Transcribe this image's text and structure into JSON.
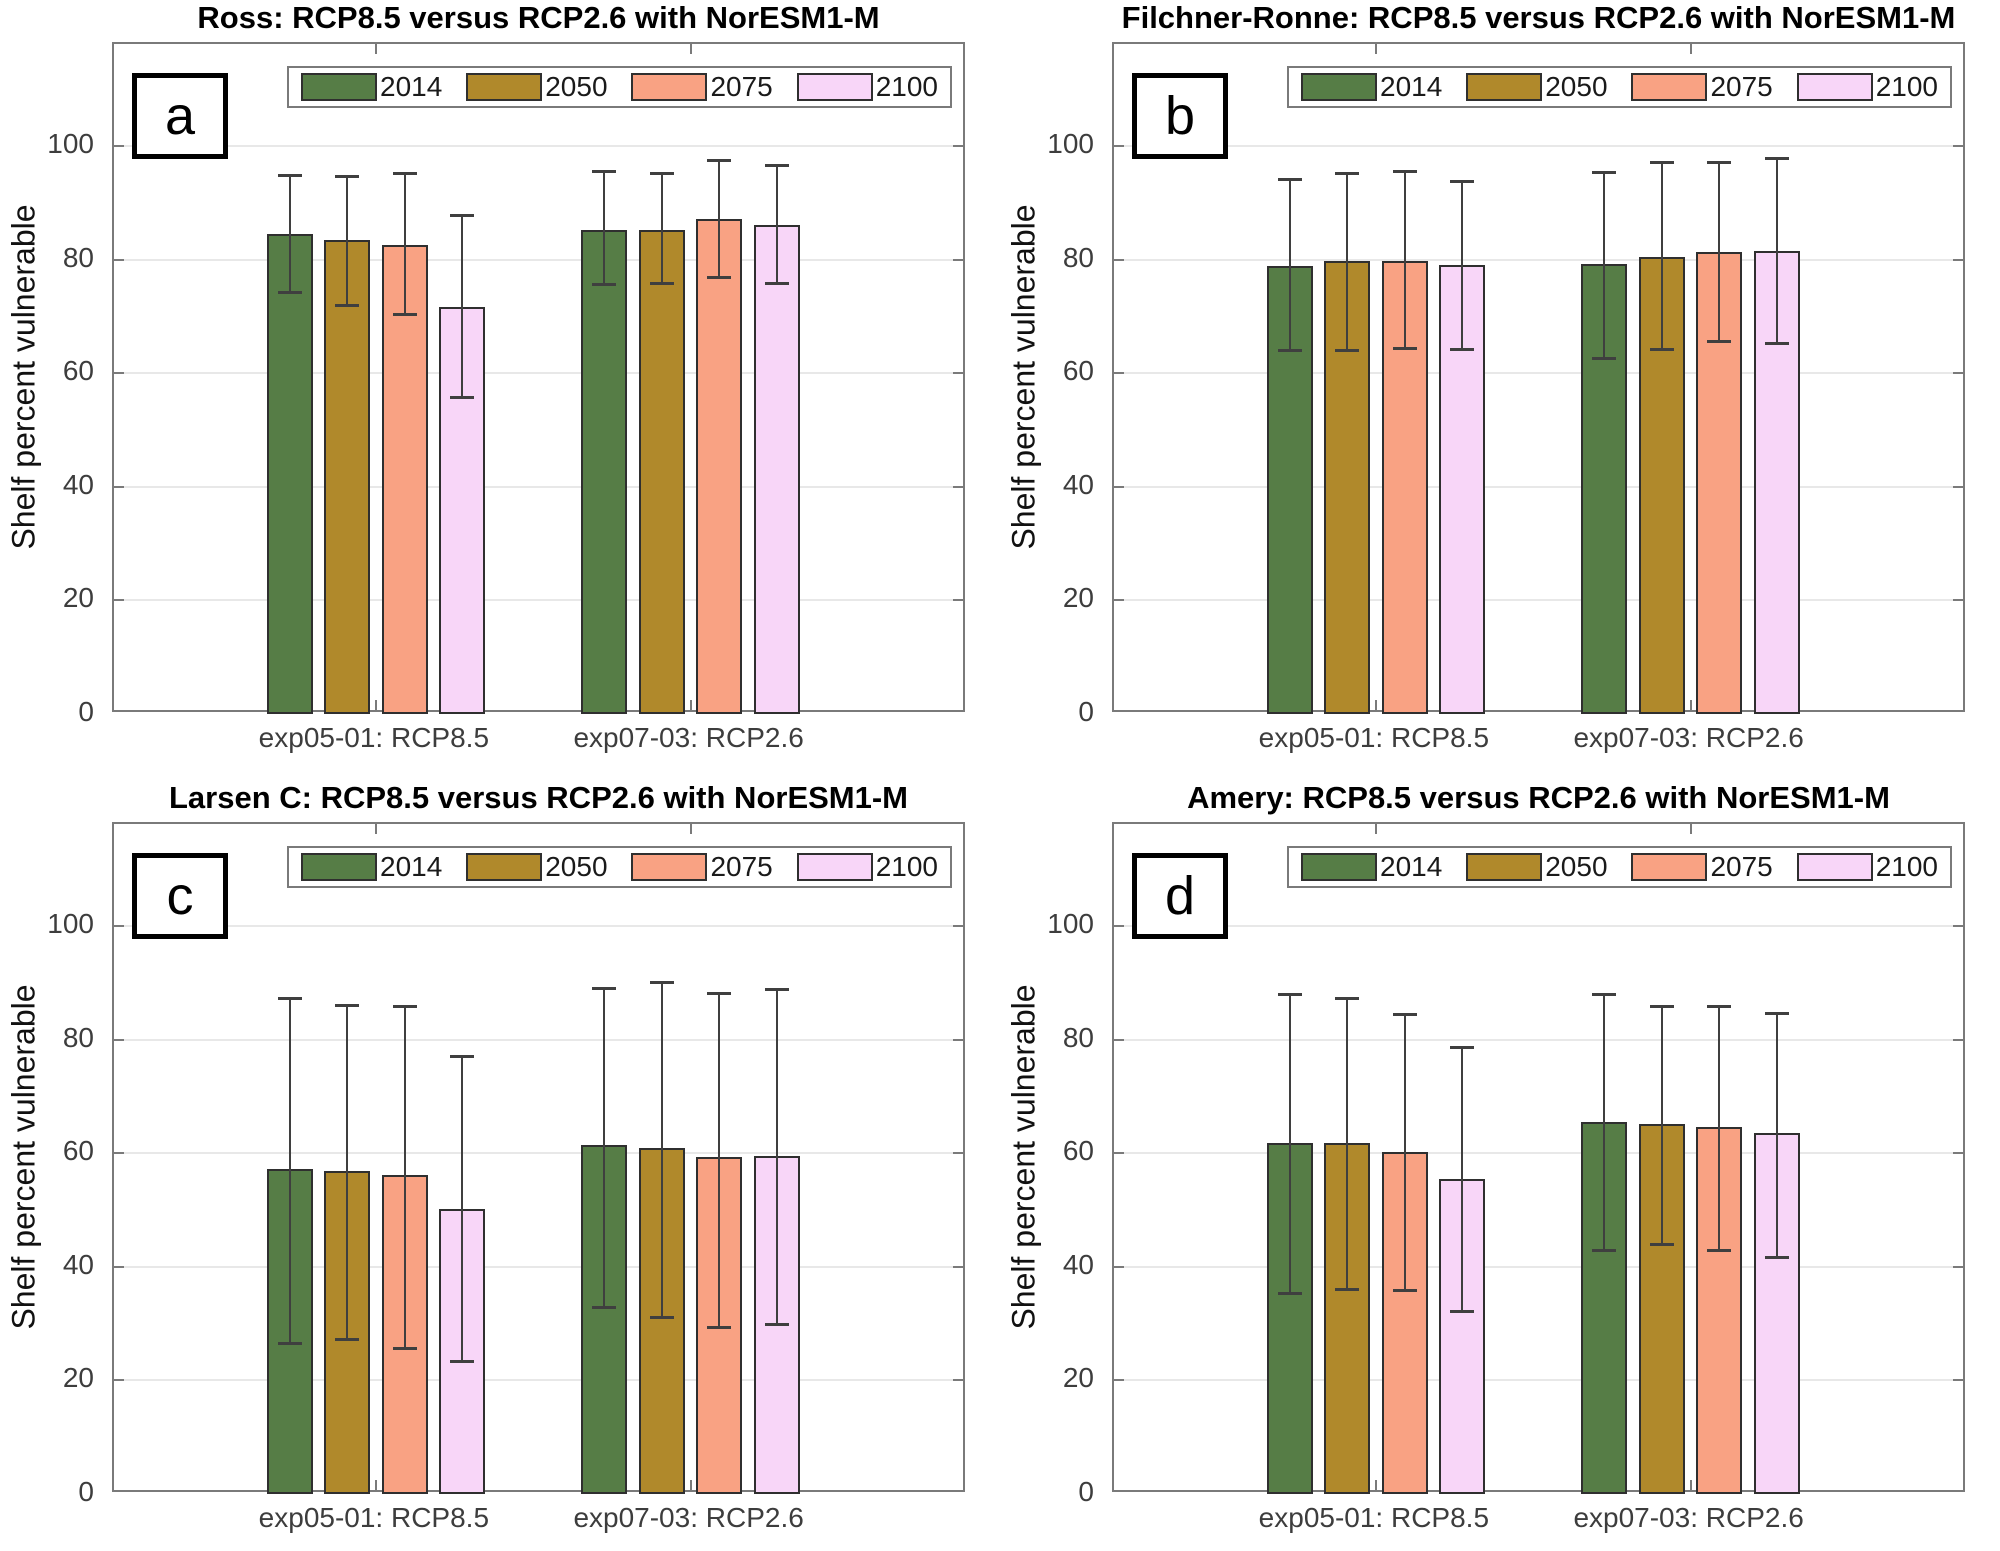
{
  "chart_data": [
    {
      "panel_label": "a",
      "type": "bar",
      "title": "Ross: RCP8.5 versus RCP2.6 with NorESM1-M",
      "ylabel": "Shelf percent vulnerable",
      "categories": [
        "exp05-01: RCP8.5",
        "exp07-03: RCP2.6"
      ],
      "series": [
        {
          "name": "2014",
          "color": "#567d46",
          "values": [
            84.5,
            85.3
          ],
          "err_low": [
            74.3,
            75.7
          ],
          "err_high": [
            94.9,
            95.6
          ]
        },
        {
          "name": "2050",
          "color": "#b0892b",
          "values": [
            83.4,
            85.2
          ],
          "err_low": [
            72.0,
            75.9
          ],
          "err_high": [
            94.8,
            95.2
          ]
        },
        {
          "name": "2075",
          "color": "#f9a283",
          "values": [
            82.6,
            87.1
          ],
          "err_low": [
            70.5,
            76.9
          ],
          "err_high": [
            95.2,
            97.5
          ]
        },
        {
          "name": "2100",
          "color": "#f8d6f8",
          "values": [
            71.6,
            86.2
          ],
          "err_low": [
            55.9,
            75.9
          ],
          "err_high": [
            87.8,
            96.7
          ]
        }
      ],
      "ylim": [
        0,
        118
      ],
      "y_ticks": [
        0,
        20,
        40,
        60,
        80,
        100
      ],
      "grid": true,
      "legend_position": "top"
    },
    {
      "panel_label": "b",
      "type": "bar",
      "title": "Filchner-Ronne: RCP8.5 versus RCP2.6 with NorESM1-M",
      "ylabel": "Shelf percent vulnerable",
      "categories": [
        "exp05-01: RCP8.5",
        "exp07-03: RCP2.6"
      ],
      "series": [
        {
          "name": "2014",
          "color": "#567d46",
          "values": [
            78.9,
            79.2
          ],
          "err_low": [
            64.1,
            62.7
          ],
          "err_high": [
            94.3,
            95.4
          ]
        },
        {
          "name": "2050",
          "color": "#b0892b",
          "values": [
            79.8,
            80.5
          ],
          "err_low": [
            64.1,
            64.3
          ],
          "err_high": [
            95.3,
            97.2
          ]
        },
        {
          "name": "2075",
          "color": "#f9a283",
          "values": [
            79.7,
            81.4
          ],
          "err_low": [
            64.4,
            65.7
          ],
          "err_high": [
            95.6,
            97.3
          ]
        },
        {
          "name": "2100",
          "color": "#f8d6f8",
          "values": [
            79.0,
            81.5
          ],
          "err_low": [
            64.3,
            65.4
          ],
          "err_high": [
            93.9,
            97.9
          ]
        }
      ],
      "ylim": [
        0,
        118
      ],
      "y_ticks": [
        0,
        20,
        40,
        60,
        80,
        100
      ],
      "grid": true,
      "legend_position": "top"
    },
    {
      "panel_label": "c",
      "type": "bar",
      "title": "Larsen C: RCP8.5 versus RCP2.6 with NorESM1-M",
      "ylabel": "Shelf percent vulnerable",
      "categories": [
        "exp05-01: RCP8.5",
        "exp07-03: RCP2.6"
      ],
      "series": [
        {
          "name": "2014",
          "color": "#567d46",
          "values": [
            57.2,
            61.4
          ],
          "err_low": [
            26.6,
            32.9
          ],
          "err_high": [
            87.4,
            89.2
          ]
        },
        {
          "name": "2050",
          "color": "#b0892b",
          "values": [
            56.8,
            61.0
          ],
          "err_low": [
            27.3,
            31.2
          ],
          "err_high": [
            86.2,
            90.2
          ]
        },
        {
          "name": "2075",
          "color": "#f9a283",
          "values": [
            56.1,
            59.3
          ],
          "err_low": [
            25.7,
            29.4
          ],
          "err_high": [
            85.9,
            88.2
          ]
        },
        {
          "name": "2100",
          "color": "#f8d6f8",
          "values": [
            50.2,
            59.6
          ],
          "err_low": [
            23.4,
            30.0
          ],
          "err_high": [
            77.1,
            89.0
          ]
        }
      ],
      "ylim": [
        0,
        118
      ],
      "y_ticks": [
        0,
        20,
        40,
        60,
        80,
        100
      ],
      "grid": true,
      "legend_position": "top"
    },
    {
      "panel_label": "d",
      "type": "bar",
      "title": "Amery: RCP8.5 versus RCP2.6 with NorESM1-M",
      "ylabel": "Shelf percent vulnerable",
      "categories": [
        "exp05-01: RCP8.5",
        "exp07-03: RCP2.6"
      ],
      "series": [
        {
          "name": "2014",
          "color": "#567d46",
          "values": [
            61.8,
            65.5
          ],
          "err_low": [
            35.4,
            43.0
          ],
          "err_high": [
            88.0,
            88.0
          ]
        },
        {
          "name": "2050",
          "color": "#b0892b",
          "values": [
            61.8,
            65.2
          ],
          "err_low": [
            36.1,
            44.0
          ],
          "err_high": [
            87.3,
            86.0
          ]
        },
        {
          "name": "2075",
          "color": "#f9a283",
          "values": [
            60.2,
            64.6
          ],
          "err_low": [
            36.0,
            43.0
          ],
          "err_high": [
            84.5,
            86.0
          ]
        },
        {
          "name": "2100",
          "color": "#f8d6f8",
          "values": [
            55.5,
            63.5
          ],
          "err_low": [
            32.3,
            41.8
          ],
          "err_high": [
            78.8,
            84.8
          ]
        }
      ],
      "ylim": [
        0,
        118
      ],
      "y_ticks": [
        0,
        20,
        40,
        60,
        80,
        100
      ],
      "grid": true,
      "legend_position": "top"
    }
  ]
}
